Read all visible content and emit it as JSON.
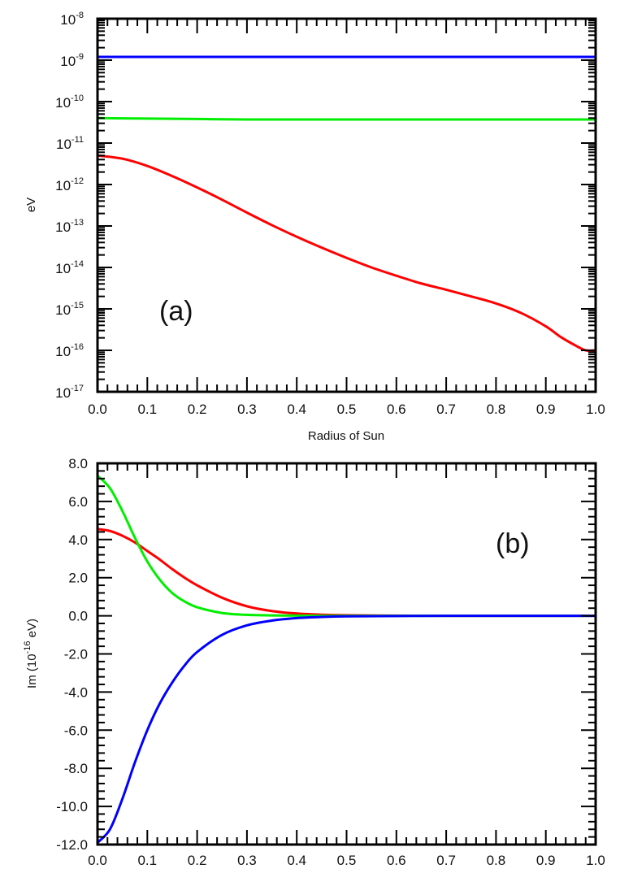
{
  "chart_data": [
    {
      "id": "a",
      "type": "line",
      "panel_label": "(a)",
      "title": "",
      "xlabel": "Radius of Sun",
      "ylabel": "eV",
      "yscale": "log",
      "xlim": [
        0.0,
        1.0
      ],
      "ylim": [
        1e-17,
        1e-08
      ],
      "x_ticks": [
        "0.0",
        "0.1",
        "0.2",
        "0.3",
        "0.4",
        "0.5",
        "0.6",
        "0.7",
        "0.8",
        "0.9",
        "1.0"
      ],
      "y_ticks": [
        {
          "base": "10",
          "exp": "-8"
        },
        {
          "base": "10",
          "exp": "-9"
        },
        {
          "base": "10",
          "exp": "-10"
        },
        {
          "base": "10",
          "exp": "-11"
        },
        {
          "base": "10",
          "exp": "-12"
        },
        {
          "base": "10",
          "exp": "-13"
        },
        {
          "base": "10",
          "exp": "-14"
        },
        {
          "base": "10",
          "exp": "-15"
        },
        {
          "base": "10",
          "exp": "-16"
        },
        {
          "base": "10",
          "exp": "-17"
        }
      ],
      "grid": false,
      "legend": null,
      "x": [
        0.0,
        0.05,
        0.1,
        0.15,
        0.2,
        0.25,
        0.3,
        0.35,
        0.4,
        0.45,
        0.5,
        0.55,
        0.6,
        0.65,
        0.7,
        0.75,
        0.8,
        0.85,
        0.9,
        0.93,
        0.96,
        0.98,
        1.0
      ],
      "series": [
        {
          "name": "blue",
          "color": "#0000ff",
          "values": [
            1.2e-09,
            1.2e-09,
            1.2e-09,
            1.2e-09,
            1.2e-09,
            1.2e-09,
            1.2e-09,
            1.2e-09,
            1.2e-09,
            1.2e-09,
            1.2e-09,
            1.2e-09,
            1.2e-09,
            1.2e-09,
            1.2e-09,
            1.2e-09,
            1.2e-09,
            1.2e-09,
            1.2e-09,
            1.2e-09,
            1.2e-09,
            1.2e-09,
            1.2e-09
          ]
        },
        {
          "name": "green",
          "color": "#00ee00",
          "values": [
            4e-11,
            3.95e-11,
            3.9e-11,
            3.85e-11,
            3.8e-11,
            3.75e-11,
            3.7e-11,
            3.7e-11,
            3.7e-11,
            3.7e-11,
            3.7e-11,
            3.7e-11,
            3.7e-11,
            3.7e-11,
            3.7e-11,
            3.7e-11,
            3.7e-11,
            3.7e-11,
            3.7e-11,
            3.7e-11,
            3.7e-11,
            3.7e-11,
            3.7e-11
          ]
        },
        {
          "name": "red",
          "color": "#ff0000",
          "values": [
            5e-12,
            4.2e-12,
            2.8e-12,
            1.6e-12,
            8.5e-13,
            4.3e-13,
            2.1e-13,
            1.05e-13,
            5.5e-14,
            3e-14,
            1.7e-14,
            1e-14,
            6.3e-15,
            4.1e-15,
            2.9e-15,
            2e-15,
            1.35e-15,
            8e-16,
            3.8e-16,
            2.1e-16,
            1.3e-16,
            1e-16,
            1e-16
          ]
        }
      ]
    },
    {
      "id": "b",
      "type": "line",
      "panel_label": "(b)",
      "title": "",
      "xlabel": "",
      "ylabel_prefix": "Im (10",
      "ylabel_exp": "-16",
      "ylabel_suffix": " eV)",
      "xlim": [
        0.0,
        1.0
      ],
      "ylim": [
        -12.0,
        8.0
      ],
      "x_ticks": [
        "0.0",
        "0.1",
        "0.2",
        "0.3",
        "0.4",
        "0.5",
        "0.6",
        "0.7",
        "0.8",
        "0.9",
        "1.0"
      ],
      "y_ticks": [
        "8.0",
        "6.0",
        "4.0",
        "2.0",
        "0.0",
        "-2.0",
        "-4.0",
        "-6.0",
        "-8.0",
        "-10.0",
        "-12.0"
      ],
      "grid": false,
      "legend": null,
      "x": [
        0.0,
        0.025,
        0.05,
        0.075,
        0.1,
        0.125,
        0.15,
        0.175,
        0.2,
        0.25,
        0.3,
        0.35,
        0.4,
        0.45,
        0.5,
        0.6,
        0.7,
        0.8,
        0.9,
        1.0
      ],
      "series": [
        {
          "name": "red",
          "color": "#ff0000",
          "values": [
            4.55,
            4.45,
            4.2,
            3.85,
            3.4,
            2.95,
            2.45,
            2.0,
            1.6,
            0.95,
            0.5,
            0.25,
            0.12,
            0.06,
            0.03,
            0.01,
            0.0,
            0.0,
            0.0,
            0.0
          ]
        },
        {
          "name": "green",
          "color": "#00ee00",
          "values": [
            7.35,
            6.7,
            5.5,
            4.1,
            2.85,
            1.9,
            1.2,
            0.75,
            0.45,
            0.15,
            0.05,
            0.02,
            0.01,
            0.0,
            0.0,
            0.0,
            0.0,
            0.0,
            0.0,
            0.0
          ]
        },
        {
          "name": "blue",
          "color": "#0000ff",
          "values": [
            -11.9,
            -11.2,
            -9.6,
            -7.7,
            -6.0,
            -4.6,
            -3.5,
            -2.6,
            -1.9,
            -1.0,
            -0.5,
            -0.25,
            -0.12,
            -0.06,
            -0.03,
            -0.01,
            0.0,
            0.0,
            0.0,
            0.0
          ]
        }
      ]
    }
  ]
}
